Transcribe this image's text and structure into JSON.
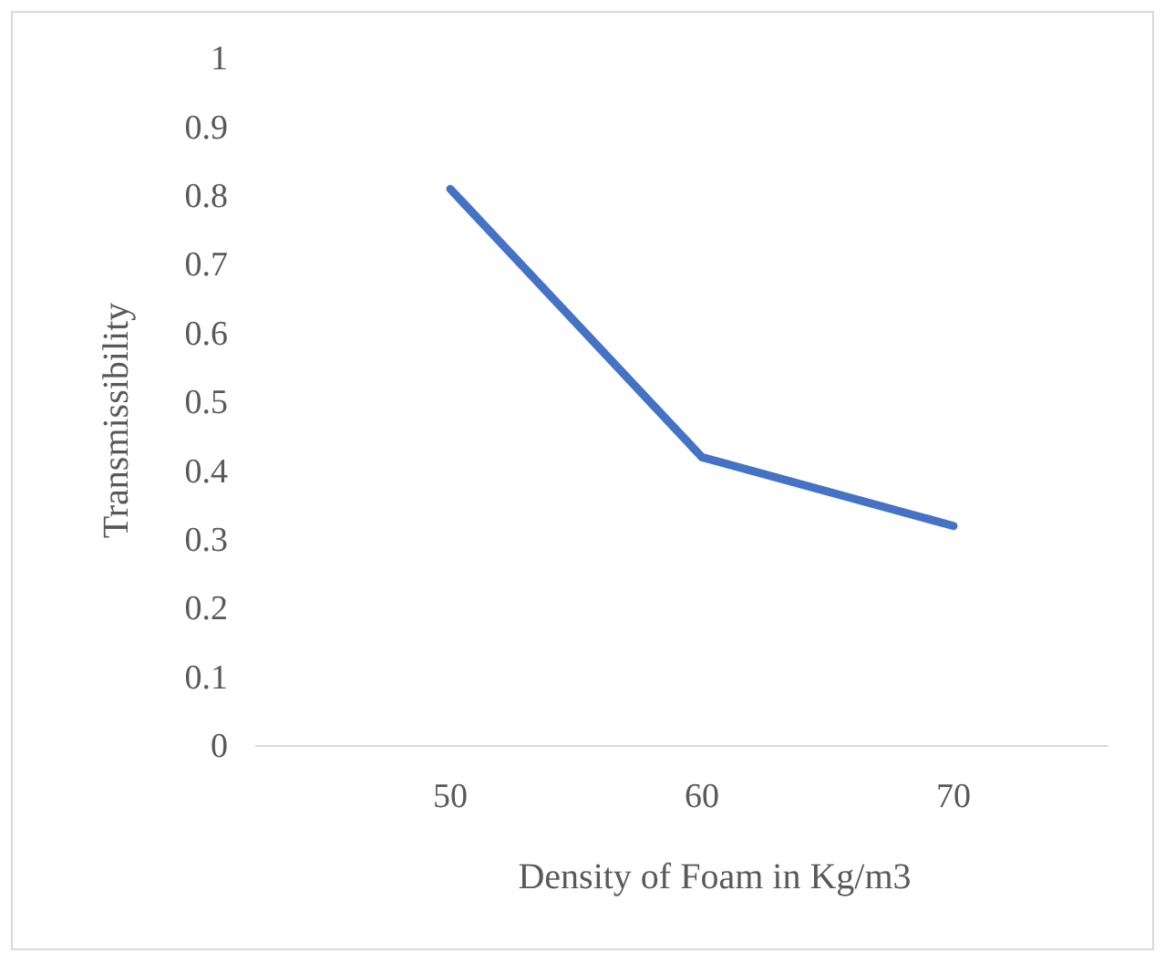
{
  "chart_data": {
    "type": "line",
    "xlabel": "Density of Foam in Kg/m3",
    "ylabel": "Transmissibility",
    "categories": [
      "50",
      "60",
      "70"
    ],
    "series": [
      {
        "color": "#4472c4",
        "values": [
          0.81,
          0.42,
          0.32
        ]
      }
    ],
    "ylim": [
      0,
      1
    ],
    "yticks": [
      0,
      0.1,
      0.2,
      0.3,
      0.4,
      0.5,
      0.6,
      0.7,
      0.8,
      0.9,
      1
    ],
    "grid": false,
    "marker": "none",
    "line_style": "solid"
  }
}
